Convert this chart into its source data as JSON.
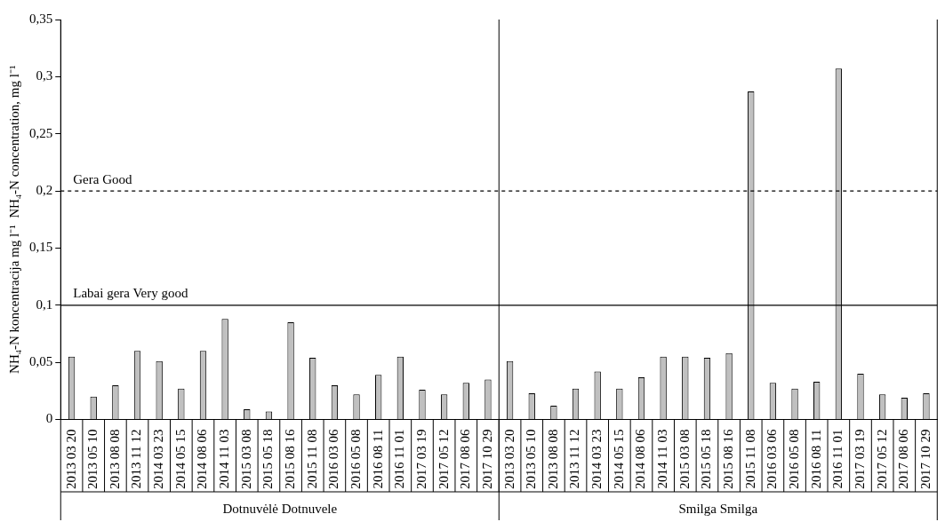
{
  "chart_data": {
    "type": "bar",
    "ylabel": "NH₄-N koncentracija mg l⁻¹  NH₄-N concentration, mg l⁻¹",
    "categories": [
      "2013 03 20",
      "2013 05 10",
      "2013 08 08",
      "2013 11 12",
      "2014 03 23",
      "2014 05 15",
      "2014 08 06",
      "2014 11 03",
      "2015 03 08",
      "2015 05 18",
      "2015 08 16",
      "2015 11 08",
      "2016 03 06",
      "2016 05 08",
      "2016 08 11",
      "2016 11 01",
      "2017 03 19",
      "2017 05 12",
      "2017 08 06",
      "2017 10 29",
      "2013 03 20",
      "2013 05 10",
      "2013 08 08",
      "2013 11 12",
      "2014 03 23",
      "2014 05 15",
      "2014 08 06",
      "2014 11 03",
      "2015 03 08",
      "2015 05 18",
      "2015 08 16",
      "2015 11 08",
      "2016 03 06",
      "2016 05 08",
      "2016 08 11",
      "2016 11 01",
      "2017 03 19",
      "2017 05 12",
      "2017 08 06",
      "2017 10 29"
    ],
    "values": [
      0.055,
      0.02,
      0.03,
      0.06,
      0.051,
      0.027,
      0.06,
      0.088,
      0.009,
      0.007,
      0.085,
      0.054,
      0.03,
      0.022,
      0.039,
      0.055,
      0.026,
      0.022,
      0.032,
      0.035,
      0.051,
      0.023,
      0.012,
      0.027,
      0.042,
      0.027,
      0.037,
      0.055,
      0.055,
      0.054,
      0.058,
      0.287,
      0.032,
      0.027,
      0.033,
      0.307,
      0.04,
      0.022,
      0.019,
      0.023
    ],
    "color": "#c0c0c0",
    "ylim": [
      0,
      0.35
    ],
    "yticks": [
      {
        "value": 0,
        "label": "0"
      },
      {
        "value": 0.05,
        "label": "0,05"
      },
      {
        "value": 0.1,
        "label": "0,1"
      },
      {
        "value": 0.15,
        "label": "0,15"
      },
      {
        "value": 0.2,
        "label": "0,2"
      },
      {
        "value": 0.25,
        "label": "0,25"
      },
      {
        "value": 0.3,
        "label": "0,3"
      },
      {
        "value": 0.35,
        "label": "0,35"
      }
    ],
    "ref_lines": [
      {
        "axis": "y",
        "value": 0.2,
        "label": "Gera Good",
        "color": "#000000",
        "line_style": "dashed"
      },
      {
        "axis": "y",
        "value": 0.1,
        "label": "Labai gera Very good",
        "color": "#000000",
        "line_style": "solid"
      }
    ],
    "annotations": [
      "Dotnuvėlė Dotnuvele",
      "Smilga Smilga"
    ],
    "legend": false
  }
}
